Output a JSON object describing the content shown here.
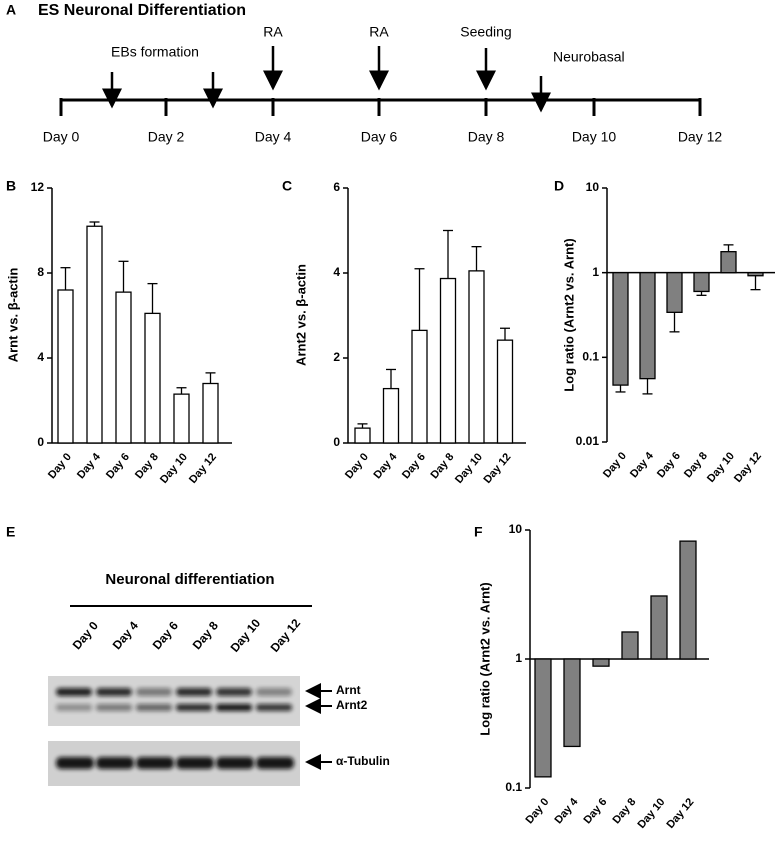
{
  "timeline": {
    "panel_label": "A",
    "title": "ES Neuronal Differentiation",
    "days": [
      "Day 0",
      "Day 2",
      "Day 4",
      "Day 6",
      "Day 8",
      "Day 10",
      "Day 12"
    ],
    "events": [
      "EBs formation",
      "RA",
      "RA",
      "Seeding",
      "Neurobasal"
    ]
  },
  "chart_data": [
    {
      "type": "bar",
      "panel_label": "B",
      "ylabel": "Arnt vs. β-actin",
      "categories": [
        "Day 0",
        "Day 4",
        "Day 6",
        "Day 8",
        "Day 10",
        "Day 12"
      ],
      "values": [
        7.2,
        10.2,
        7.1,
        6.1,
        2.3,
        2.8
      ],
      "errors": [
        1.05,
        0.2,
        1.45,
        1.4,
        0.3,
        0.5
      ],
      "color": "#ffffff",
      "ylim": [
        0,
        12
      ],
      "yticks": [
        0,
        4,
        8,
        12
      ],
      "log": false
    },
    {
      "type": "bar",
      "panel_label": "C",
      "ylabel": "Arnt2 vs. β-actin",
      "categories": [
        "Day 0",
        "Day 4",
        "Day 6",
        "Day 8",
        "Day 10",
        "Day 12"
      ],
      "values": [
        0.35,
        1.28,
        2.65,
        3.87,
        4.05,
        2.42
      ],
      "errors": [
        0.1,
        0.45,
        1.45,
        1.13,
        0.57,
        0.28
      ],
      "color": "#ffffff",
      "ylim": [
        0,
        6
      ],
      "yticks": [
        0,
        2,
        4,
        6
      ],
      "log": false
    },
    {
      "type": "bar",
      "panel_label": "D",
      "ylabel": "Log ratio (Arnt2 vs. Arnt)",
      "categories": [
        "Day 0",
        "Day 4",
        "Day 6",
        "Day 8",
        "Day 10",
        "Day 12"
      ],
      "values": [
        0.047,
        0.056,
        0.34,
        0.6,
        1.77,
        0.92
      ],
      "errors": [
        0.008,
        0.019,
        0.14,
        0.06,
        0.36,
        0.29
      ],
      "color": "#808080",
      "ylim": [
        0.01,
        10
      ],
      "yticks": [
        0.01,
        0.1,
        1,
        10
      ],
      "log": true
    },
    {
      "type": "bar",
      "panel_label": "F",
      "ylabel": "Log ratio (Arnt2 vs. Arnt)",
      "categories": [
        "Day 0",
        "Day 4",
        "Day 6",
        "Day 8",
        "Day 10",
        "Day 12"
      ],
      "values": [
        0.122,
        0.21,
        0.88,
        1.62,
        3.08,
        8.2
      ],
      "color": "#808080",
      "ylim": [
        0.1,
        10
      ],
      "yticks": [
        0.1,
        1,
        10
      ],
      "log": true
    }
  ],
  "blot": {
    "panel_label": "E",
    "title": "Neuronal differentiation",
    "lanes": [
      "Day 0",
      "Day 4",
      "Day 6",
      "Day 8",
      "Day 10",
      "Day 12"
    ],
    "bands": [
      "Arnt",
      "Arnt2",
      "α-Tubulin"
    ]
  }
}
